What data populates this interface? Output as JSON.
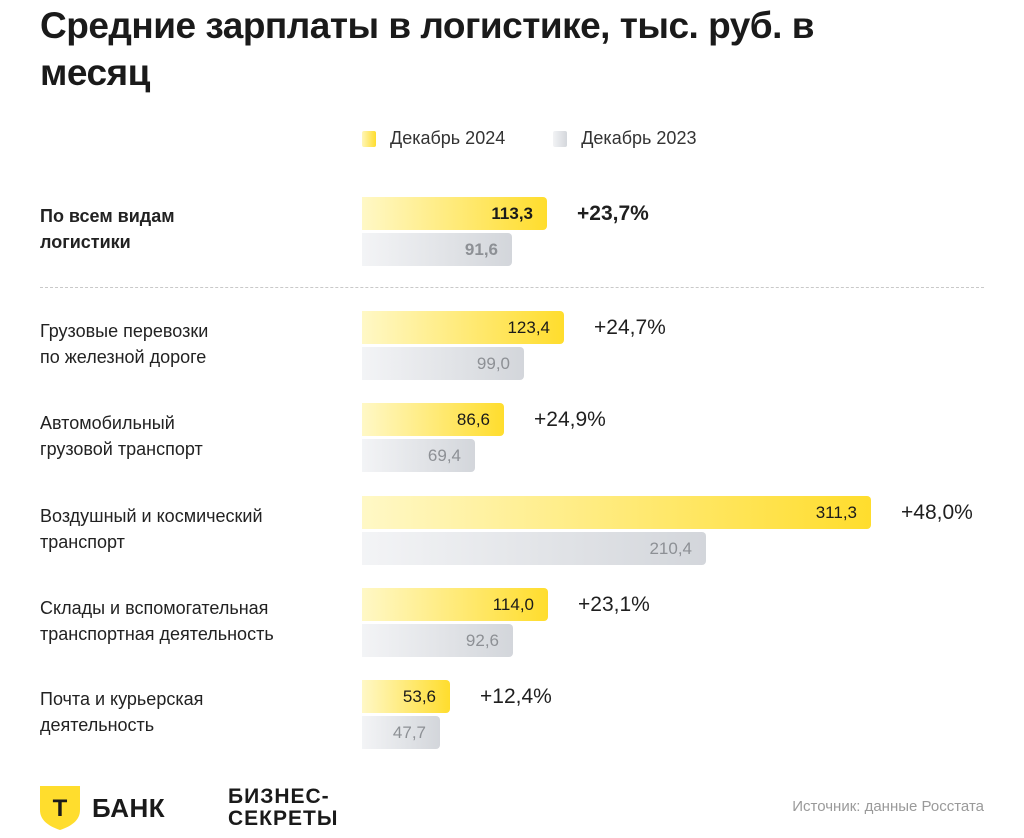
{
  "title": "Средние зарплаты в логистике, тыс. руб. в месяц",
  "legend": {
    "current": "Декабрь 2024",
    "previous": "Декабрь 2023"
  },
  "colors": {
    "current": "#ffdd2d",
    "previous": "#d3d6db"
  },
  "chart_data": {
    "type": "bar",
    "orientation": "horizontal",
    "title": "Средние зарплаты в логистике, тыс. руб. в месяц",
    "unit": "тыс. руб. в месяц",
    "categories": [
      "По всем видам логистики",
      "Грузовые перевозки по железной дороге",
      "Автомобильный грузовой транспорт",
      "Воздушный и космический транспорт",
      "Склады и вспомогательная транспортная деятельность",
      "Почта и курьерская деятельность"
    ],
    "series": [
      {
        "name": "Декабрь 2024",
        "values": [
          113.3,
          123.4,
          86.6,
          311.3,
          114.0,
          53.6
        ],
        "labels": [
          "113,3",
          "123,4",
          "86,6",
          "311,3",
          "114,0",
          "53,6"
        ]
      },
      {
        "name": "Декабрь 2023",
        "values": [
          91.6,
          99.0,
          69.4,
          210.4,
          92.6,
          47.7
        ],
        "labels": [
          "91,6",
          "99,0",
          "69,4",
          "210,4",
          "92,6",
          "47,7"
        ]
      }
    ],
    "changes": [
      "+23,7%",
      "+24,7%",
      "+24,9%",
      "+48,0%",
      "+23,1%",
      "+12,4%"
    ],
    "xlim": [
      0,
      311.3
    ]
  },
  "rows": [
    {
      "label_line1": "По всем видам",
      "label_line2": "логистики"
    },
    {
      "label_line1": "Грузовые перевозки",
      "label_line2": "по железной дороге"
    },
    {
      "label_line1": "Автомобильный",
      "label_line2": "грузовой транспорт"
    },
    {
      "label_line1": "Воздушный и космический",
      "label_line2": "транспорт"
    },
    {
      "label_line1": "Склады и вспомогательная",
      "label_line2": "транспортная деятельность"
    },
    {
      "label_line1": "Почта и курьерская",
      "label_line2": "деятельность"
    }
  ],
  "footer": {
    "tbank_letter": "Т",
    "tbank_name": "БАНК",
    "biz_line1": "БИЗНЕС-",
    "biz_line2": "СЕКРЕТЫ",
    "source": "Источник: данные Росстата"
  }
}
